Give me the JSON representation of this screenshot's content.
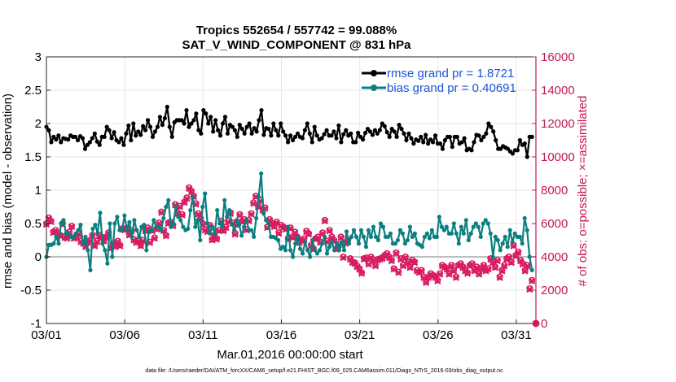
{
  "chart_data": {
    "type": "line",
    "title": "Tropics 552654 / 557742 = 99.088%",
    "subtitle": "SAT_V_WIND_COMPONENT @ 831 hPa",
    "xlabel": "Mar.01,2016 00:00:00 start",
    "ylabel": "rmse and bias (model - observation)",
    "y2label": "# of obs: o=possible; ×=assimilated",
    "ylim": [
      -1,
      3
    ],
    "y2lim": [
      0,
      16000
    ],
    "xlim": [
      0,
      31.25
    ],
    "yticks": [
      "-1",
      "-0.5",
      "0",
      "0.5",
      "1",
      "1.5",
      "2",
      "2.5",
      "3"
    ],
    "y2ticks": [
      "0",
      "2000",
      "4000",
      "6000",
      "8000",
      "10000",
      "12000",
      "14000",
      "16000"
    ],
    "xticks": [
      "03/01",
      "03/06",
      "03/11",
      "03/16",
      "03/21",
      "03/26",
      "03/31"
    ],
    "footnote": "data file: /Users/raeder/DAI/ATM_forcXX/CAM6_setup/f.e21.FHIST_BGC.f09_025.CAM6assim.011/Diags_NTrS_2016-03/obs_diag_output.nc",
    "legend": [
      {
        "label": "rmse grand pr = 1.8721",
        "color": "#000000"
      },
      {
        "label": "bias grand pr = 0.40691",
        "color": "#0b7f7f"
      }
    ],
    "colors": {
      "rmse": "#000000",
      "bias": "#0b7f7f",
      "obs": "#d81b60",
      "axis_right": "#c2185b",
      "legend_text": "#1a56db",
      "zero_line": "#bdbdbd"
    },
    "series": [
      {
        "name": "rmse",
        "values": [
          1.95,
          1.9,
          1.72,
          1.8,
          1.76,
          1.82,
          1.72,
          1.78,
          1.77,
          1.76,
          1.82,
          1.8,
          1.8,
          1.75,
          1.81,
          1.78,
          1.62,
          1.68,
          1.72,
          1.78,
          1.85,
          1.73,
          1.68,
          1.8,
          1.8,
          1.95,
          1.9,
          1.78,
          1.87,
          1.75,
          1.72,
          1.78,
          1.68,
          1.85,
          1.97,
          1.75,
          2.0,
          1.82,
          1.88,
          1.83,
          1.96,
          1.9,
          2.05,
          1.95,
          1.8,
          1.88,
          1.95,
          2.1,
          1.98,
          2.08,
          2.25,
          1.95,
          1.8,
          2.02,
          2.05,
          2.05,
          2.05,
          2.0,
          2.2,
          1.95,
          2.0,
          2.05,
          2.15,
          1.9,
          1.85,
          2.2,
          2.15,
          2.0,
          2.1,
          1.88,
          2.05,
          1.9,
          1.82,
          2.0,
          2.1,
          1.85,
          1.98,
          1.95,
          1.9,
          1.8,
          1.98,
          1.92,
          1.85,
          1.95,
          2.0,
          1.85,
          1.93,
          1.88,
          2.05,
          2.2,
          1.83,
          1.93,
          1.92,
          1.82,
          2.0,
          1.9,
          1.82,
          2.0,
          1.88,
          1.82,
          1.72,
          1.82,
          1.75,
          1.8,
          1.85,
          1.8,
          1.78,
          1.9,
          2.0,
          1.85,
          1.72,
          1.95,
          1.82,
          1.76,
          1.78,
          1.84,
          1.9,
          1.82,
          1.82,
          1.88,
          1.78,
          1.97,
          1.72,
          1.84,
          1.9,
          1.82,
          1.85,
          1.72,
          1.72,
          1.86,
          1.8,
          1.76,
          1.86,
          1.92,
          1.88,
          1.83,
          1.9,
          1.85,
          1.9,
          2.0,
          1.96,
          1.87,
          1.8,
          1.92,
          1.88,
          1.8,
          1.98,
          1.92,
          1.85,
          1.75,
          1.85,
          1.78,
          1.7,
          1.76,
          1.74,
          1.8,
          1.72,
          1.83,
          1.7,
          1.76,
          1.72,
          1.82,
          1.7,
          1.7,
          1.62,
          1.75,
          1.8,
          1.8,
          1.65,
          1.8,
          1.8,
          1.7,
          1.72,
          1.78,
          1.6,
          1.62,
          1.6,
          1.72,
          1.83,
          1.82,
          1.75,
          1.8,
          1.85,
          2.0,
          1.95,
          1.88,
          1.75,
          1.62,
          1.62,
          1.66,
          1.64,
          1.62,
          1.58,
          1.55,
          1.6,
          1.6,
          1.75,
          1.68,
          1.7,
          1.5,
          1.8,
          1.8
        ]
      },
      {
        "name": "bias",
        "values": [
          0.0,
          0.18,
          0.18,
          0.2,
          0.3,
          0.2,
          0.5,
          0.55,
          0.35,
          0.35,
          0.3,
          0.28,
          0.35,
          0.4,
          0.48,
          0.2,
          0.3,
          0.1,
          -0.2,
          0.42,
          0.48,
          0.36,
          0.66,
          0.2,
          0.1,
          -0.1,
          0.5,
          0.0,
          0.5,
          0.6,
          0.4,
          0.4,
          0.62,
          0.4,
          0.52,
          0.3,
          0.55,
          0.4,
          0.3,
          0.45,
          0.48,
          0.1,
          0.38,
          0.4,
          0.55,
          0.45,
          0.45,
          0.4,
          0.58,
          0.75,
          0.85,
          0.45,
          0.5,
          0.75,
          0.6,
          0.55,
          0.45,
          0.4,
          0.42,
          0.7,
          0.9,
          0.45,
          0.55,
          0.25,
          0.75,
          0.95,
          0.5,
          0.35,
          0.45,
          0.35,
          0.7,
          0.5,
          0.45,
          0.85,
          0.6,
          0.7,
          0.5,
          0.4,
          0.55,
          0.48,
          0.32,
          0.45,
          0.55,
          0.4,
          0.4,
          0.3,
          0.58,
          0.9,
          1.25,
          0.65,
          0.55,
          0.5,
          0.3,
          0.3,
          0.28,
          0.25,
          0.12,
          0.15,
          0.1,
          0.45,
          0.1,
          0.0,
          0.2,
          0.3,
          0.12,
          0.05,
          0.22,
          0.1,
          0.0,
          0.25,
          0.1,
          0.05,
          0.1,
          0.2,
          0.3,
          0.05,
          0.15,
          0.22,
          0.1,
          0.2,
          0.1,
          0.22,
          0.1,
          0.38,
          0.2,
          0.3,
          0.4,
          0.3,
          0.2,
          0.4,
          0.3,
          0.15,
          0.4,
          0.3,
          0.45,
          0.3,
          0.25,
          0.5,
          0.45,
          0.3,
          0.3,
          0.35,
          0.2,
          0.2,
          0.25,
          0.4,
          0.35,
          0.2,
          0.25,
          0.45,
          0.3,
          0.35,
          0.2,
          0.18,
          0.15,
          0.3,
          0.35,
          0.28,
          0.4,
          0.3,
          0.3,
          0.6,
          0.45,
          0.4,
          0.45,
          0.35,
          0.35,
          0.5,
          0.35,
          0.2,
          0.45,
          0.35,
          0.55,
          0.25,
          0.35,
          0.45,
          0.5,
          0.45,
          0.3,
          0.5,
          0.55,
          0.5,
          0.35,
          0.0,
          0.3,
          0.25,
          0.1,
          0.2,
          0.3,
          0.15,
          0.4,
          0.22,
          0.35,
          0.3,
          0.3,
          0.2,
          0.58,
          0.4,
          0.0,
          -0.2
        ]
      },
      {
        "name": "obs_possible",
        "values": [
          6000,
          6350,
          6150,
          5500,
          5600,
          5400,
          5300,
          6000,
          5200,
          5150,
          5500,
          5850,
          5150,
          5200,
          5400,
          4950,
          4850,
          4650,
          4900,
          5000,
          5300,
          4700,
          4950,
          5300,
          5200,
          5000,
          5200,
          5450,
          4550,
          4800,
          4650,
          4950,
          4700,
          5700,
          5650,
          5750,
          5350,
          5600,
          5050,
          4900,
          4950,
          4700,
          5000,
          5600,
          5750,
          4900,
          5600,
          5150,
          5700,
          6050,
          6700,
          5600,
          5300,
          6050,
          6100,
          5900,
          7150,
          6650,
          7050,
          6550,
          7300,
          7550,
          8150,
          7950,
          7650,
          7200,
          6600,
          6300,
          6000,
          5650,
          5550,
          5900,
          5050,
          5300,
          5100,
          5600,
          6150,
          5600,
          5800,
          6150,
          6650,
          6050,
          5400,
          5950,
          6550,
          6150,
          6250,
          5650,
          6200,
          6600,
          7250,
          7650,
          7050,
          7400,
          6850,
          6950,
          5800,
          6250,
          6000,
          5850,
          6100,
          5450,
          5900,
          5800,
          5700,
          5100,
          5750,
          5200,
          5500,
          5200,
          4900,
          5000,
          5100,
          5550,
          5400,
          4700,
          4500,
          5100,
          5200,
          4900,
          5450,
          6200,
          4950,
          5600,
          5200,
          5000,
          4500,
          4750,
          5200,
          4000,
          4850,
          5000,
          3900,
          3700,
          3650,
          3450,
          3300,
          3050,
          3900,
          3950,
          3600,
          4000,
          3800,
          3500,
          3850,
          3900,
          3950,
          4100,
          4200,
          4000,
          3800,
          3300,
          4250,
          3100,
          3900,
          3500,
          4000,
          3700,
          3400,
          3800,
          3700,
          3200,
          3100,
          3200,
          2800,
          2500,
          2800,
          3000,
          2900,
          2800,
          2600,
          3000,
          3500,
          3400,
          3300,
          3000,
          3500,
          3200,
          2800,
          3500,
          3600,
          3400,
          3200,
          3050,
          3500,
          3600,
          3200,
          3400,
          3000,
          3300,
          3500,
          3200,
          3300,
          3900,
          3700,
          3400,
          3800,
          2800,
          3200,
          3500,
          3900,
          4000,
          3700,
          4700,
          4100,
          4300,
          3800,
          3600,
          3200,
          3500,
          2100,
          2600
        ]
      },
      {
        "name": "obs_assimilated",
        "values": [
          5950,
          6300,
          6100,
          5450,
          5550,
          5350,
          5250,
          5950,
          5150,
          5100,
          5450,
          5800,
          5100,
          5150,
          5350,
          4900,
          4800,
          4600,
          4850,
          4950,
          5250,
          4650,
          4900,
          5250,
          5150,
          4950,
          5150,
          5400,
          4500,
          4750,
          4600,
          4900,
          4650,
          5650,
          5600,
          5700,
          5300,
          5550,
          5000,
          4850,
          4900,
          4650,
          4950,
          5550,
          5700,
          4850,
          5550,
          5100,
          5650,
          6000,
          6650,
          5550,
          5250,
          6000,
          6050,
          5850,
          7100,
          6600,
          7000,
          6500,
          7250,
          7500,
          8100,
          7900,
          7600,
          7150,
          6550,
          6250,
          5950,
          5600,
          5500,
          5850,
          5000,
          5250,
          5050,
          5550,
          6100,
          5550,
          5750,
          6100,
          6600,
          6000,
          5350,
          5900,
          6500,
          6100,
          6200,
          5600,
          6150,
          6550,
          7200,
          7600,
          7000,
          7350,
          6800,
          6900,
          5750,
          6200,
          5950,
          5800,
          6050,
          5400,
          5850,
          5750,
          5650,
          5050,
          5700,
          5150,
          5450,
          5150,
          4850,
          4950,
          5050,
          5500,
          5350,
          4650,
          4450,
          5050,
          5150,
          4850,
          5400,
          6150,
          4900,
          5550,
          5150,
          4950,
          4450,
          4700,
          5150,
          3950,
          4800,
          4950,
          3850,
          3650,
          3600,
          3400,
          3250,
          3000,
          3850,
          3900,
          3550,
          3950,
          3750,
          3450,
          3800,
          3850,
          3900,
          4050,
          4150,
          3950,
          3750,
          3250,
          4200,
          3050,
          3850,
          3450,
          3950,
          3650,
          3350,
          3750,
          3650,
          3150,
          3050,
          3150,
          2750,
          2450,
          2750,
          2950,
          2850,
          2750,
          2550,
          2950,
          3450,
          3350,
          3250,
          2950,
          3450,
          3150,
          2750,
          3450,
          3550,
          3350,
          3150,
          3000,
          3450,
          3550,
          3150,
          3350,
          2950,
          3250,
          3450,
          3150,
          3250,
          3850,
          3650,
          3350,
          3750,
          2750,
          3150,
          3450,
          3850,
          3950,
          3650,
          4650,
          4050,
          4250,
          3750,
          3550,
          3150,
          3450,
          2050,
          2550
        ]
      }
    ],
    "extra_points": [
      {
        "series": "obs",
        "x": 31.25,
        "y": 0
      }
    ]
  }
}
